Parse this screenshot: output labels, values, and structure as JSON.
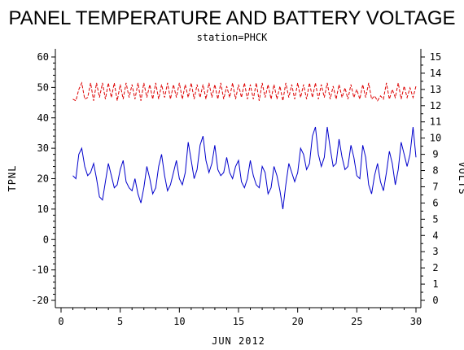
{
  "chart_data": {
    "type": "line",
    "title": "PANEL TEMPERATURE AND BATTERY VOLTAGE",
    "subtitle": "station=PHCK",
    "xlabel": "JUN 2012",
    "ylabel_left": "TPNL",
    "ylabel_right": "VOLTS",
    "xlim": [
      0,
      30
    ],
    "ylim_left": [
      -20,
      60
    ],
    "ylim_right": [
      0,
      15
    ],
    "x_ticks": [
      0,
      5,
      10,
      15,
      20,
      25,
      30
    ],
    "y_left_ticks": [
      -20,
      -10,
      0,
      10,
      20,
      30,
      40,
      50,
      60
    ],
    "y_right_ticks": [
      0,
      1,
      2,
      3,
      4,
      5,
      6,
      7,
      8,
      9,
      10,
      11,
      12,
      13,
      14,
      15
    ],
    "grid": false,
    "series": [
      {
        "axis": "left",
        "color": "#0000cc",
        "style": "solid",
        "x": [
          1.0,
          1.25,
          1.5,
          1.75,
          2.0,
          2.25,
          2.5,
          2.75,
          3.0,
          3.25,
          3.5,
          3.75,
          4.0,
          4.25,
          4.5,
          4.75,
          5.0,
          5.25,
          5.5,
          5.75,
          6.0,
          6.25,
          6.5,
          6.75,
          7.0,
          7.25,
          7.5,
          7.75,
          8.0,
          8.25,
          8.5,
          8.75,
          9.0,
          9.25,
          9.5,
          9.75,
          10.0,
          10.25,
          10.5,
          10.75,
          11.0,
          11.25,
          11.5,
          11.75,
          12.0,
          12.25,
          12.5,
          12.75,
          13.0,
          13.25,
          13.5,
          13.75,
          14.0,
          14.25,
          14.5,
          14.75,
          15.0,
          15.25,
          15.5,
          15.75,
          16.0,
          16.25,
          16.5,
          16.75,
          17.0,
          17.25,
          17.5,
          17.75,
          18.0,
          18.25,
          18.5,
          18.75,
          19.0,
          19.25,
          19.5,
          19.75,
          20.0,
          20.25,
          20.5,
          20.75,
          21.0,
          21.25,
          21.5,
          21.75,
          22.0,
          22.25,
          22.5,
          22.75,
          23.0,
          23.25,
          23.5,
          23.75,
          24.0,
          24.25,
          24.5,
          24.75,
          25.0,
          25.25,
          25.5,
          25.75,
          26.0,
          26.25,
          26.5,
          26.75,
          27.0,
          27.25,
          27.5,
          27.75,
          28.0,
          28.25,
          28.5,
          28.75,
          29.0,
          29.25,
          29.5,
          29.75,
          30.0
        ],
        "y": [
          21,
          20,
          28,
          30,
          24,
          21,
          22,
          25,
          20,
          14,
          13,
          19,
          25,
          21,
          17,
          18,
          23,
          26,
          19,
          17,
          16,
          20,
          15,
          12,
          17,
          24,
          20,
          15,
          17,
          24,
          28,
          21,
          16,
          18,
          22,
          26,
          20,
          18,
          22,
          32,
          26,
          20,
          23,
          31,
          34,
          26,
          22,
          25,
          31,
          23,
          21,
          22,
          27,
          22,
          20,
          24,
          26,
          19,
          17,
          20,
          26,
          21,
          18,
          17,
          24,
          22,
          15,
          17,
          24,
          21,
          16,
          10,
          18,
          25,
          22,
          19,
          22,
          30,
          28,
          23,
          25,
          34,
          37,
          28,
          24,
          27,
          37,
          30,
          24,
          25,
          33,
          27,
          23,
          24,
          31,
          27,
          21,
          20,
          31,
          27,
          18,
          15,
          21,
          25,
          19,
          16,
          22,
          29,
          25,
          18,
          23,
          32,
          28,
          24,
          28,
          37,
          27
        ]
      },
      {
        "axis": "right",
        "color": "#dd0000",
        "style": "dashed",
        "x": [
          1.0,
          1.25,
          1.5,
          1.75,
          2.0,
          2.25,
          2.5,
          2.75,
          3.0,
          3.25,
          3.5,
          3.75,
          4.0,
          4.25,
          4.5,
          4.75,
          5.0,
          5.25,
          5.5,
          5.75,
          6.0,
          6.25,
          6.5,
          6.75,
          7.0,
          7.25,
          7.5,
          7.75,
          8.0,
          8.25,
          8.5,
          8.75,
          9.0,
          9.25,
          9.5,
          9.75,
          10.0,
          10.25,
          10.5,
          10.75,
          11.0,
          11.25,
          11.5,
          11.75,
          12.0,
          12.25,
          12.5,
          12.75,
          13.0,
          13.25,
          13.5,
          13.75,
          14.0,
          14.25,
          14.5,
          14.75,
          15.0,
          15.25,
          15.5,
          15.75,
          16.0,
          16.25,
          16.5,
          16.75,
          17.0,
          17.25,
          17.5,
          17.75,
          18.0,
          18.25,
          18.5,
          18.75,
          19.0,
          19.25,
          19.5,
          19.75,
          20.0,
          20.25,
          20.5,
          20.75,
          21.0,
          21.25,
          21.5,
          21.75,
          22.0,
          22.25,
          22.5,
          22.75,
          23.0,
          23.25,
          23.5,
          23.75,
          24.0,
          24.25,
          24.5,
          24.75,
          25.0,
          25.25,
          25.5,
          25.75,
          26.0,
          26.25,
          26.5,
          26.75,
          27.0,
          27.25,
          27.5,
          27.75,
          28.0,
          28.25,
          28.5,
          28.75,
          29.0,
          29.25,
          29.5,
          29.75,
          30.0
        ],
        "y": [
          12.4,
          12.3,
          13.0,
          13.4,
          12.4,
          12.5,
          13.4,
          12.3,
          13.4,
          12.5,
          13.4,
          12.4,
          13.4,
          12.5,
          13.4,
          12.3,
          13.3,
          12.4,
          13.4,
          12.5,
          13.3,
          12.4,
          13.4,
          12.3,
          13.4,
          12.5,
          13.3,
          12.4,
          13.4,
          12.4,
          13.3,
          12.5,
          13.4,
          12.4,
          13.3,
          12.5,
          13.4,
          12.4,
          13.3,
          12.5,
          13.4,
          12.4,
          13.3,
          12.5,
          13.3,
          12.4,
          13.4,
          12.5,
          13.3,
          12.4,
          13.4,
          12.4,
          13.2,
          12.5,
          13.4,
          12.4,
          13.3,
          12.5,
          13.4,
          12.4,
          13.3,
          12.4,
          13.4,
          12.3,
          13.4,
          12.5,
          13.3,
          12.4,
          13.3,
          12.4,
          13.2,
          12.3,
          13.4,
          12.5,
          13.3,
          12.4,
          13.4,
          12.5,
          13.3,
          12.4,
          13.4,
          12.5,
          13.4,
          12.4,
          13.3,
          12.5,
          13.4,
          12.4,
          13.2,
          12.4,
          13.3,
          12.5,
          13.1,
          12.4,
          13.3,
          12.5,
          13.0,
          12.4,
          13.3,
          12.5,
          13.4,
          12.4,
          12.6,
          12.3,
          12.6,
          12.4,
          13.4,
          12.4,
          13.0,
          12.5,
          13.4,
          12.4,
          13.2,
          12.5,
          13.1,
          12.5,
          13.2
        ]
      }
    ]
  }
}
